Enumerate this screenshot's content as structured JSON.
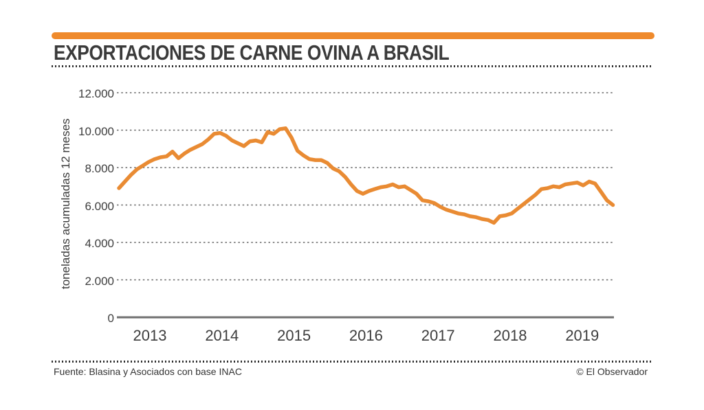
{
  "header": {
    "title": "EXPORTACIONES DE CARNE OVINA A BRASIL",
    "accent_color": "#EF8A2C"
  },
  "footer": {
    "source": "Fuente: Blasina y Asociados con base INAC",
    "credit": "© El Observador"
  },
  "chart_data": {
    "type": "line",
    "title": "EXPORTACIONES DE CARNE OVINA A BRASIL",
    "xlabel": "",
    "ylabel": "toneladas acumuladas 12 meses",
    "x_tick_labels": [
      "2013",
      "2014",
      "2015",
      "2016",
      "2017",
      "2018",
      "2019"
    ],
    "y_tick_labels": [
      "0",
      "2.000",
      "4.000",
      "6.000",
      "8.000",
      "10.000",
      "12.000"
    ],
    "y_tick_values": [
      0,
      2000,
      4000,
      6000,
      8000,
      10000,
      12000
    ],
    "ylim": [
      0,
      12000
    ],
    "grid": "horizontal-dashed",
    "legend": "none",
    "line_color": "#E98B33",
    "grid_color": "#656565",
    "axis_color": "#6f6f6f",
    "series": [
      {
        "name": "toneladas acumuladas 12 meses",
        "frequency": "monthly",
        "start": "2012-08",
        "end": "2019-07",
        "values": [
          6900,
          7250,
          7600,
          7900,
          8100,
          8300,
          8450,
          8550,
          8600,
          8850,
          8500,
          8750,
          8950,
          9100,
          9250,
          9500,
          9800,
          9850,
          9700,
          9450,
          9300,
          9150,
          9400,
          9450,
          9350,
          9900,
          9800,
          10050,
          10100,
          9600,
          8900,
          8650,
          8450,
          8400,
          8400,
          8250,
          7950,
          7800,
          7500,
          7100,
          6750,
          6600,
          6750,
          6850,
          6950,
          7000,
          7100,
          6950,
          7000,
          6800,
          6600,
          6250,
          6200,
          6100,
          5900,
          5750,
          5650,
          5550,
          5500,
          5400,
          5350,
          5250,
          5200,
          5050,
          5400,
          5450,
          5550,
          5800,
          6050,
          6300,
          6550,
          6850,
          6900,
          7000,
          6950,
          7100,
          7150,
          7200,
          7050,
          7250,
          7150,
          6700,
          6250,
          6000
        ]
      }
    ]
  }
}
